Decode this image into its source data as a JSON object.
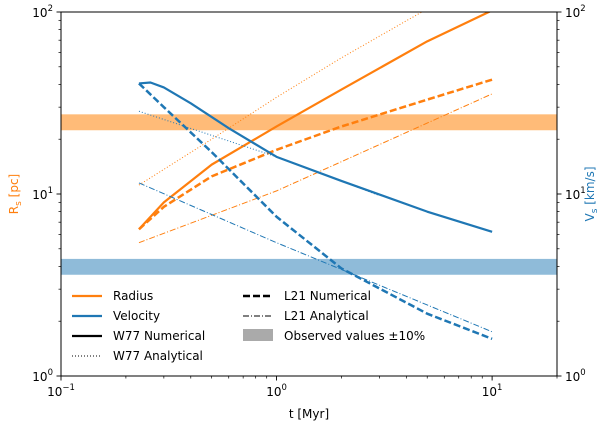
{
  "chart_data": {
    "type": "line",
    "x_scale": "log",
    "y_scale": "log",
    "xlim": [
      0.1,
      20
    ],
    "ylim_left": [
      1,
      100
    ],
    "ylim_right": [
      1,
      100
    ],
    "xlabel": "t [Myr]",
    "ylabel_left": {
      "base": "R",
      "sub": "s",
      "unit": " [pc]"
    },
    "ylabel_right": {
      "base": "V",
      "sub": "s",
      "unit": " [km/s]"
    },
    "x_ticks": [
      {
        "value": 0.1,
        "base": "10",
        "exp": "−1"
      },
      {
        "value": 1,
        "base": "10",
        "exp": "0"
      },
      {
        "value": 10,
        "base": "10",
        "exp": "1"
      }
    ],
    "y_ticks": [
      {
        "value": 1,
        "base": "10",
        "exp": "0"
      },
      {
        "value": 10,
        "base": "10",
        "exp": "1"
      },
      {
        "value": 100,
        "base": "10",
        "exp": "2"
      }
    ],
    "colors": {
      "radius": "#ff7f0e",
      "velocity": "#1f77b4",
      "band_radius": "#ffbb78",
      "band_velocity": "#8fbbd9",
      "legend_band": "#aaaaaa"
    },
    "bands": [
      {
        "quantity": "Radius",
        "y_range": [
          22.4,
          27.4
        ],
        "color": "#ffbb78"
      },
      {
        "quantity": "Velocity",
        "y_range": [
          3.6,
          4.4
        ],
        "color": "#8fbbd9"
      }
    ],
    "series": [
      {
        "quantity": "Radius",
        "model": "W77 Numerical",
        "style": "solid",
        "color": "#ff7f0e",
        "x": [
          0.23,
          0.3,
          0.5,
          1,
          2,
          5,
          10
        ],
        "y": [
          6.4,
          9.0,
          14.5,
          23.5,
          37.5,
          69.0,
          102
        ]
      },
      {
        "quantity": "Radius",
        "model": "W77 Analytical",
        "style": "dotted",
        "color": "#ff7f0e",
        "x": [
          0.23,
          0.5,
          1,
          2,
          5,
          10
        ],
        "y": [
          11.2,
          20.0,
          34.0,
          56.0,
          104,
          120
        ]
      },
      {
        "quantity": "Radius",
        "model": "L21 Numerical",
        "style": "dashed",
        "color": "#ff7f0e",
        "x": [
          0.23,
          0.3,
          0.5,
          1,
          2,
          5,
          10
        ],
        "y": [
          6.4,
          8.5,
          12.5,
          17.5,
          23.5,
          33.0,
          42.5
        ]
      },
      {
        "quantity": "Radius",
        "model": "L21 Analytical",
        "style": "dashdot",
        "color": "#ff7f0e",
        "x": [
          0.23,
          1,
          10
        ],
        "y": [
          5.4,
          10.4,
          35.5
        ]
      },
      {
        "quantity": "Velocity",
        "model": "W77 Numerical",
        "style": "solid",
        "color": "#1f77b4",
        "x": [
          0.23,
          0.26,
          0.3,
          0.4,
          0.6,
          1,
          2,
          5,
          10
        ],
        "y": [
          40.5,
          41.0,
          38.5,
          31.5,
          23.0,
          16.0,
          11.8,
          8.0,
          6.2
        ]
      },
      {
        "quantity": "Velocity",
        "model": "W77 Analytical",
        "style": "dotted",
        "color": "#1f77b4",
        "x": [
          0.23,
          0.5,
          1,
          2,
          3
        ],
        "y": [
          28.5,
          21.0,
          16.0,
          11.8,
          9.8
        ]
      },
      {
        "quantity": "Velocity",
        "model": "L21 Numerical",
        "style": "dashed",
        "color": "#1f77b4",
        "x": [
          0.23,
          0.3,
          0.5,
          1,
          2,
          5,
          10
        ],
        "y": [
          40.5,
          30.0,
          17.0,
          7.5,
          3.9,
          2.2,
          1.6
        ]
      },
      {
        "quantity": "Velocity",
        "model": "L21 Analytical",
        "style": "dashdot",
        "color": "#1f77b4",
        "x": [
          0.23,
          1,
          10
        ],
        "y": [
          11.5,
          5.4,
          1.75
        ]
      }
    ],
    "legend": {
      "placement": "lower-left",
      "col1": [
        "Radius",
        "Velocity",
        "W77 Numerical",
        "W77 Analytical"
      ],
      "col2": [
        "L21 Numerical",
        "L21 Analytical",
        "Observed values ±10%"
      ]
    },
    "grid": false
  }
}
